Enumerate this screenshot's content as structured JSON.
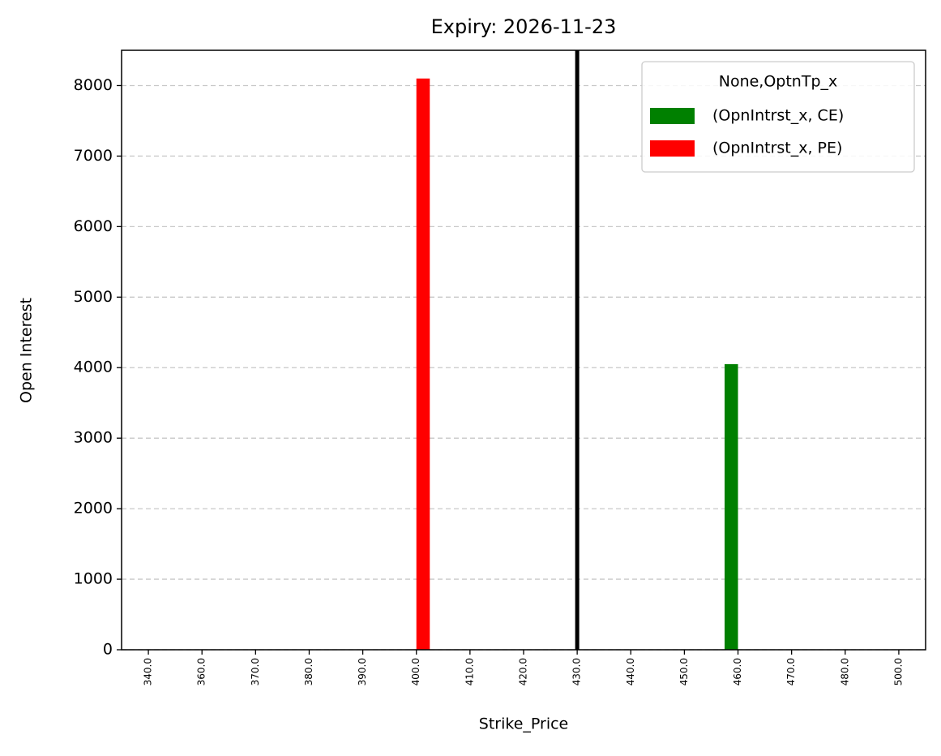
{
  "chart_data": {
    "type": "bar",
    "title": "Expiry: 2026-11-23",
    "x_label": "Strike_Price",
    "y_label": "Open Interest",
    "categories": [
      "340.0",
      "360.0",
      "370.0",
      "380.0",
      "390.0",
      "400.0",
      "410.0",
      "420.0",
      "430.0",
      "440.0",
      "450.0",
      "460.0",
      "470.0",
      "480.0",
      "500.0"
    ],
    "series": [
      {
        "name": "(OpnIntrst_x, CE)",
        "color": "#008000",
        "values": [
          0,
          0,
          0,
          0,
          0,
          0,
          0,
          0,
          0,
          0,
          0,
          4050,
          0,
          0,
          0
        ]
      },
      {
        "name": "(OpnIntrst_x, PE)",
        "color": "#ff0000",
        "values": [
          0,
          0,
          0,
          0,
          0,
          8100,
          0,
          0,
          0,
          0,
          0,
          0,
          0,
          0,
          0
        ]
      }
    ],
    "legend_title": "None,OptnTp_x",
    "legend": "upper right",
    "vline": "430.0",
    "vline_color": "#000000",
    "ylim": [
      0,
      8500
    ],
    "yticks": [
      0,
      1000,
      2000,
      3000,
      4000,
      5000,
      6000,
      7000,
      8000
    ],
    "grid": true
  }
}
